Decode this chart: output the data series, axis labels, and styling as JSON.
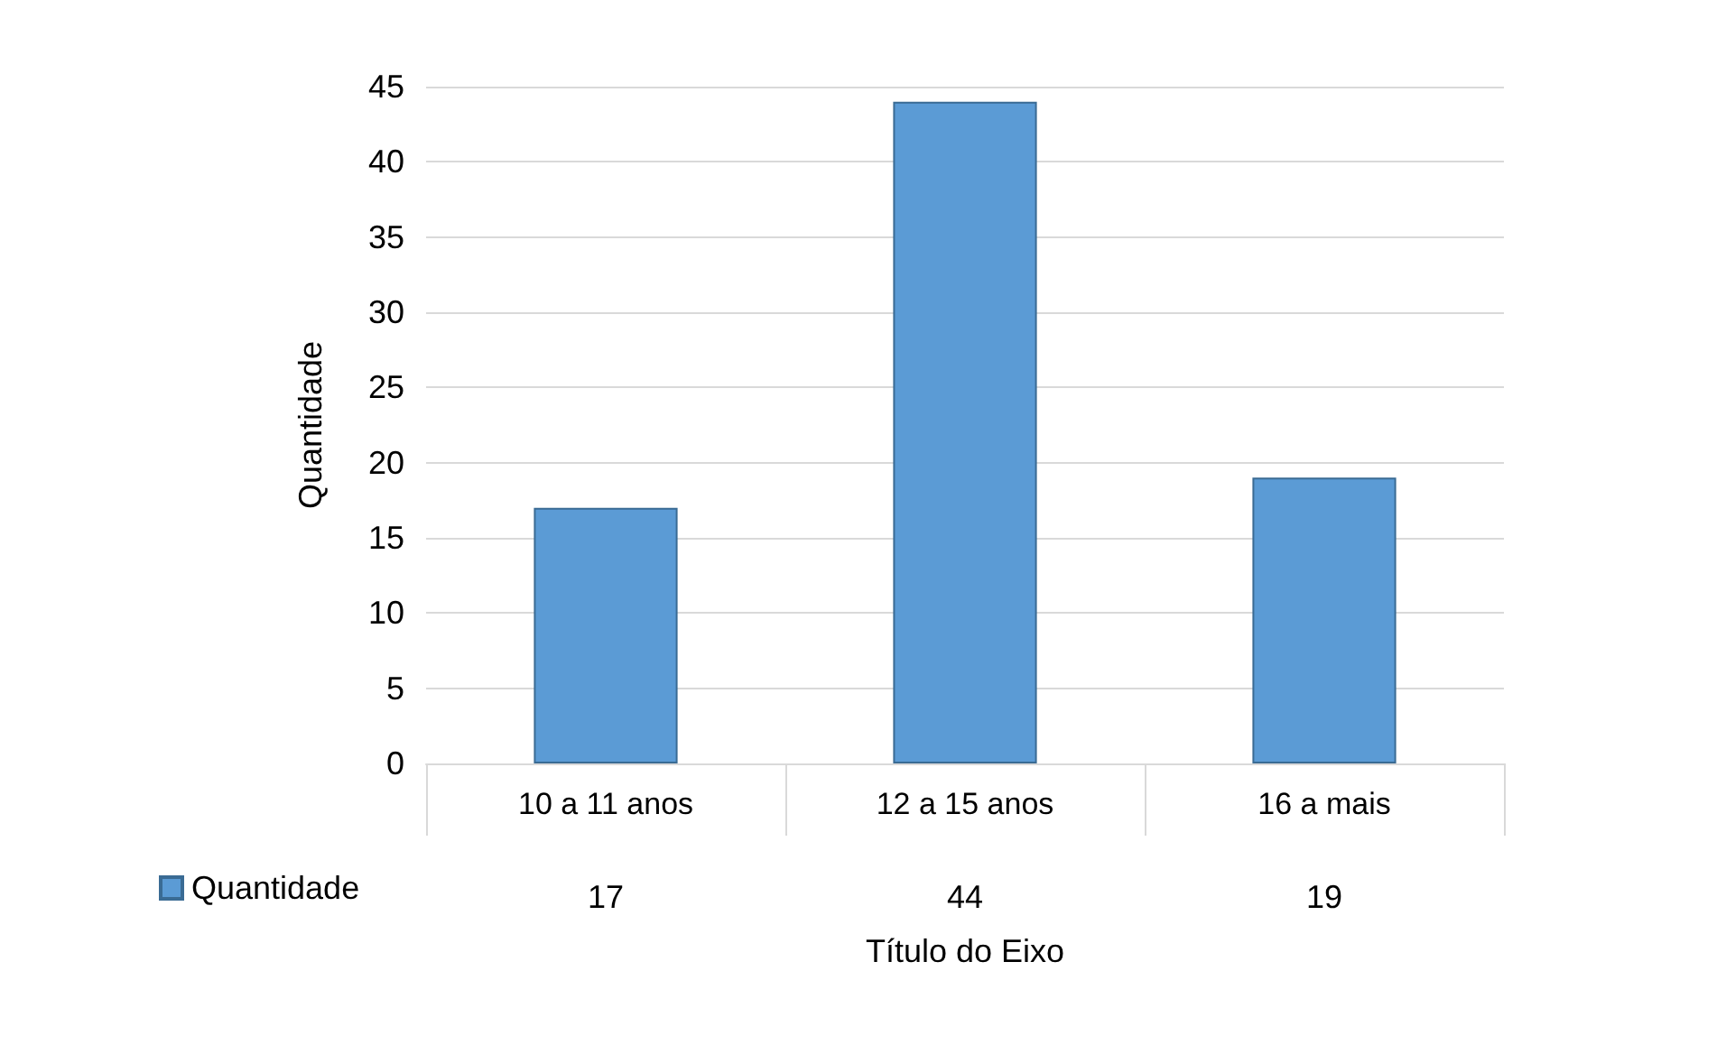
{
  "chart_data": {
    "type": "bar",
    "xlabel": "Título do Eixo",
    "ylabel": "Quantidade",
    "categories": [
      "10 a 11 anos",
      "12 a 15 anos",
      "16 a mais"
    ],
    "series": [
      {
        "name": "Quantidade",
        "color": "#5b9bd5",
        "values": [
          17,
          44,
          19
        ]
      }
    ],
    "ylim": [
      0,
      45
    ],
    "yticks": [
      0,
      5,
      10,
      15,
      20,
      25,
      30,
      35,
      40,
      45
    ],
    "grid": "y",
    "legend": "bottom left",
    "data_labels": true
  }
}
